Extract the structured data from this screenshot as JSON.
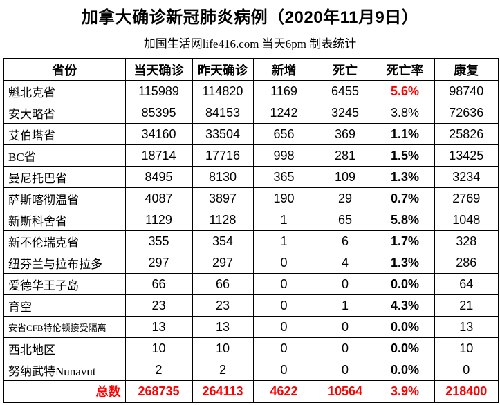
{
  "colors": {
    "highlight_red": "#ff0000",
    "text_black": "#000000",
    "border_black": "#000000",
    "background": "#ffffff"
  },
  "chart_data": {
    "type": "table",
    "title": "加拿大确诊新冠肺炎病例（2020年11月9日）",
    "subtitle": "加国生活网life416.com 当天6pm 制表统计",
    "columns": [
      "省份",
      "当天确诊",
      "昨天确诊",
      "新增",
      "死亡",
      "死亡率",
      "康复"
    ],
    "rows": [
      {
        "province": "魁北克省",
        "today": 115989,
        "yesterday": 114820,
        "new_cases": 1169,
        "deaths": 6455,
        "death_rate": "5.6%",
        "recovered": 98740,
        "death_rate_red": true,
        "death_rate_bold": true,
        "small_font": false
      },
      {
        "province": "安大略省",
        "today": 85395,
        "yesterday": 84153,
        "new_cases": 1242,
        "deaths": 3245,
        "death_rate": "3.8%",
        "recovered": 72636,
        "death_rate_red": false,
        "death_rate_bold": false,
        "small_font": false
      },
      {
        "province": "艾伯塔省",
        "today": 34160,
        "yesterday": 33504,
        "new_cases": 656,
        "deaths": 369,
        "death_rate": "1.1%",
        "recovered": 25826,
        "death_rate_red": false,
        "death_rate_bold": true,
        "small_font": false
      },
      {
        "province": "BC省",
        "today": 18714,
        "yesterday": 17716,
        "new_cases": 998,
        "deaths": 281,
        "death_rate": "1.5%",
        "recovered": 13425,
        "death_rate_red": false,
        "death_rate_bold": true,
        "small_font": false
      },
      {
        "province": "曼尼托巴省",
        "today": 8495,
        "yesterday": 8130,
        "new_cases": 365,
        "deaths": 109,
        "death_rate": "1.3%",
        "recovered": 3234,
        "death_rate_red": false,
        "death_rate_bold": true,
        "small_font": false
      },
      {
        "province": "萨斯喀彻温省",
        "today": 4087,
        "yesterday": 3897,
        "new_cases": 190,
        "deaths": 29,
        "death_rate": "0.7%",
        "recovered": 2769,
        "death_rate_red": false,
        "death_rate_bold": true,
        "small_font": false
      },
      {
        "province": "新斯科舍省",
        "today": 1129,
        "yesterday": 1128,
        "new_cases": 1,
        "deaths": 65,
        "death_rate": "5.8%",
        "recovered": 1048,
        "death_rate_red": false,
        "death_rate_bold": true,
        "small_font": false
      },
      {
        "province": "新不伦瑞克省",
        "today": 355,
        "yesterday": 354,
        "new_cases": 1,
        "deaths": 6,
        "death_rate": "1.7%",
        "recovered": 328,
        "death_rate_red": false,
        "death_rate_bold": true,
        "small_font": false
      },
      {
        "province": "纽芬兰与拉布拉多",
        "today": 297,
        "yesterday": 297,
        "new_cases": 0,
        "deaths": 4,
        "death_rate": "1.3%",
        "recovered": 286,
        "death_rate_red": false,
        "death_rate_bold": true,
        "small_font": false
      },
      {
        "province": "爱德华王子岛",
        "today": 66,
        "yesterday": 66,
        "new_cases": 0,
        "deaths": 0,
        "death_rate": "0.0%",
        "recovered": 64,
        "death_rate_red": false,
        "death_rate_bold": true,
        "small_font": false
      },
      {
        "province": "育空",
        "today": 23,
        "yesterday": 23,
        "new_cases": 0,
        "deaths": 1,
        "death_rate": "4.3%",
        "recovered": 21,
        "death_rate_red": false,
        "death_rate_bold": true,
        "small_font": false
      },
      {
        "province": "安省CFB特伦顿接受隔离",
        "today": 13,
        "yesterday": 13,
        "new_cases": 0,
        "deaths": 0,
        "death_rate": "0.0%",
        "recovered": 13,
        "death_rate_red": false,
        "death_rate_bold": true,
        "small_font": true
      },
      {
        "province": "西北地区",
        "today": 10,
        "yesterday": 10,
        "new_cases": 0,
        "deaths": 0,
        "death_rate": "0.0%",
        "recovered": 10,
        "death_rate_red": false,
        "death_rate_bold": true,
        "small_font": false
      },
      {
        "province": "努纳武特Nunavut",
        "today": 2,
        "yesterday": 2,
        "new_cases": 0,
        "deaths": 0,
        "death_rate": "0.0%",
        "recovered": 0,
        "death_rate_red": false,
        "death_rate_bold": true,
        "small_font": false
      }
    ],
    "total": {
      "label": "总数",
      "today": 268735,
      "yesterday": 264113,
      "new_cases": 4622,
      "deaths": 10564,
      "death_rate": "3.9%",
      "recovered": 218400
    }
  }
}
